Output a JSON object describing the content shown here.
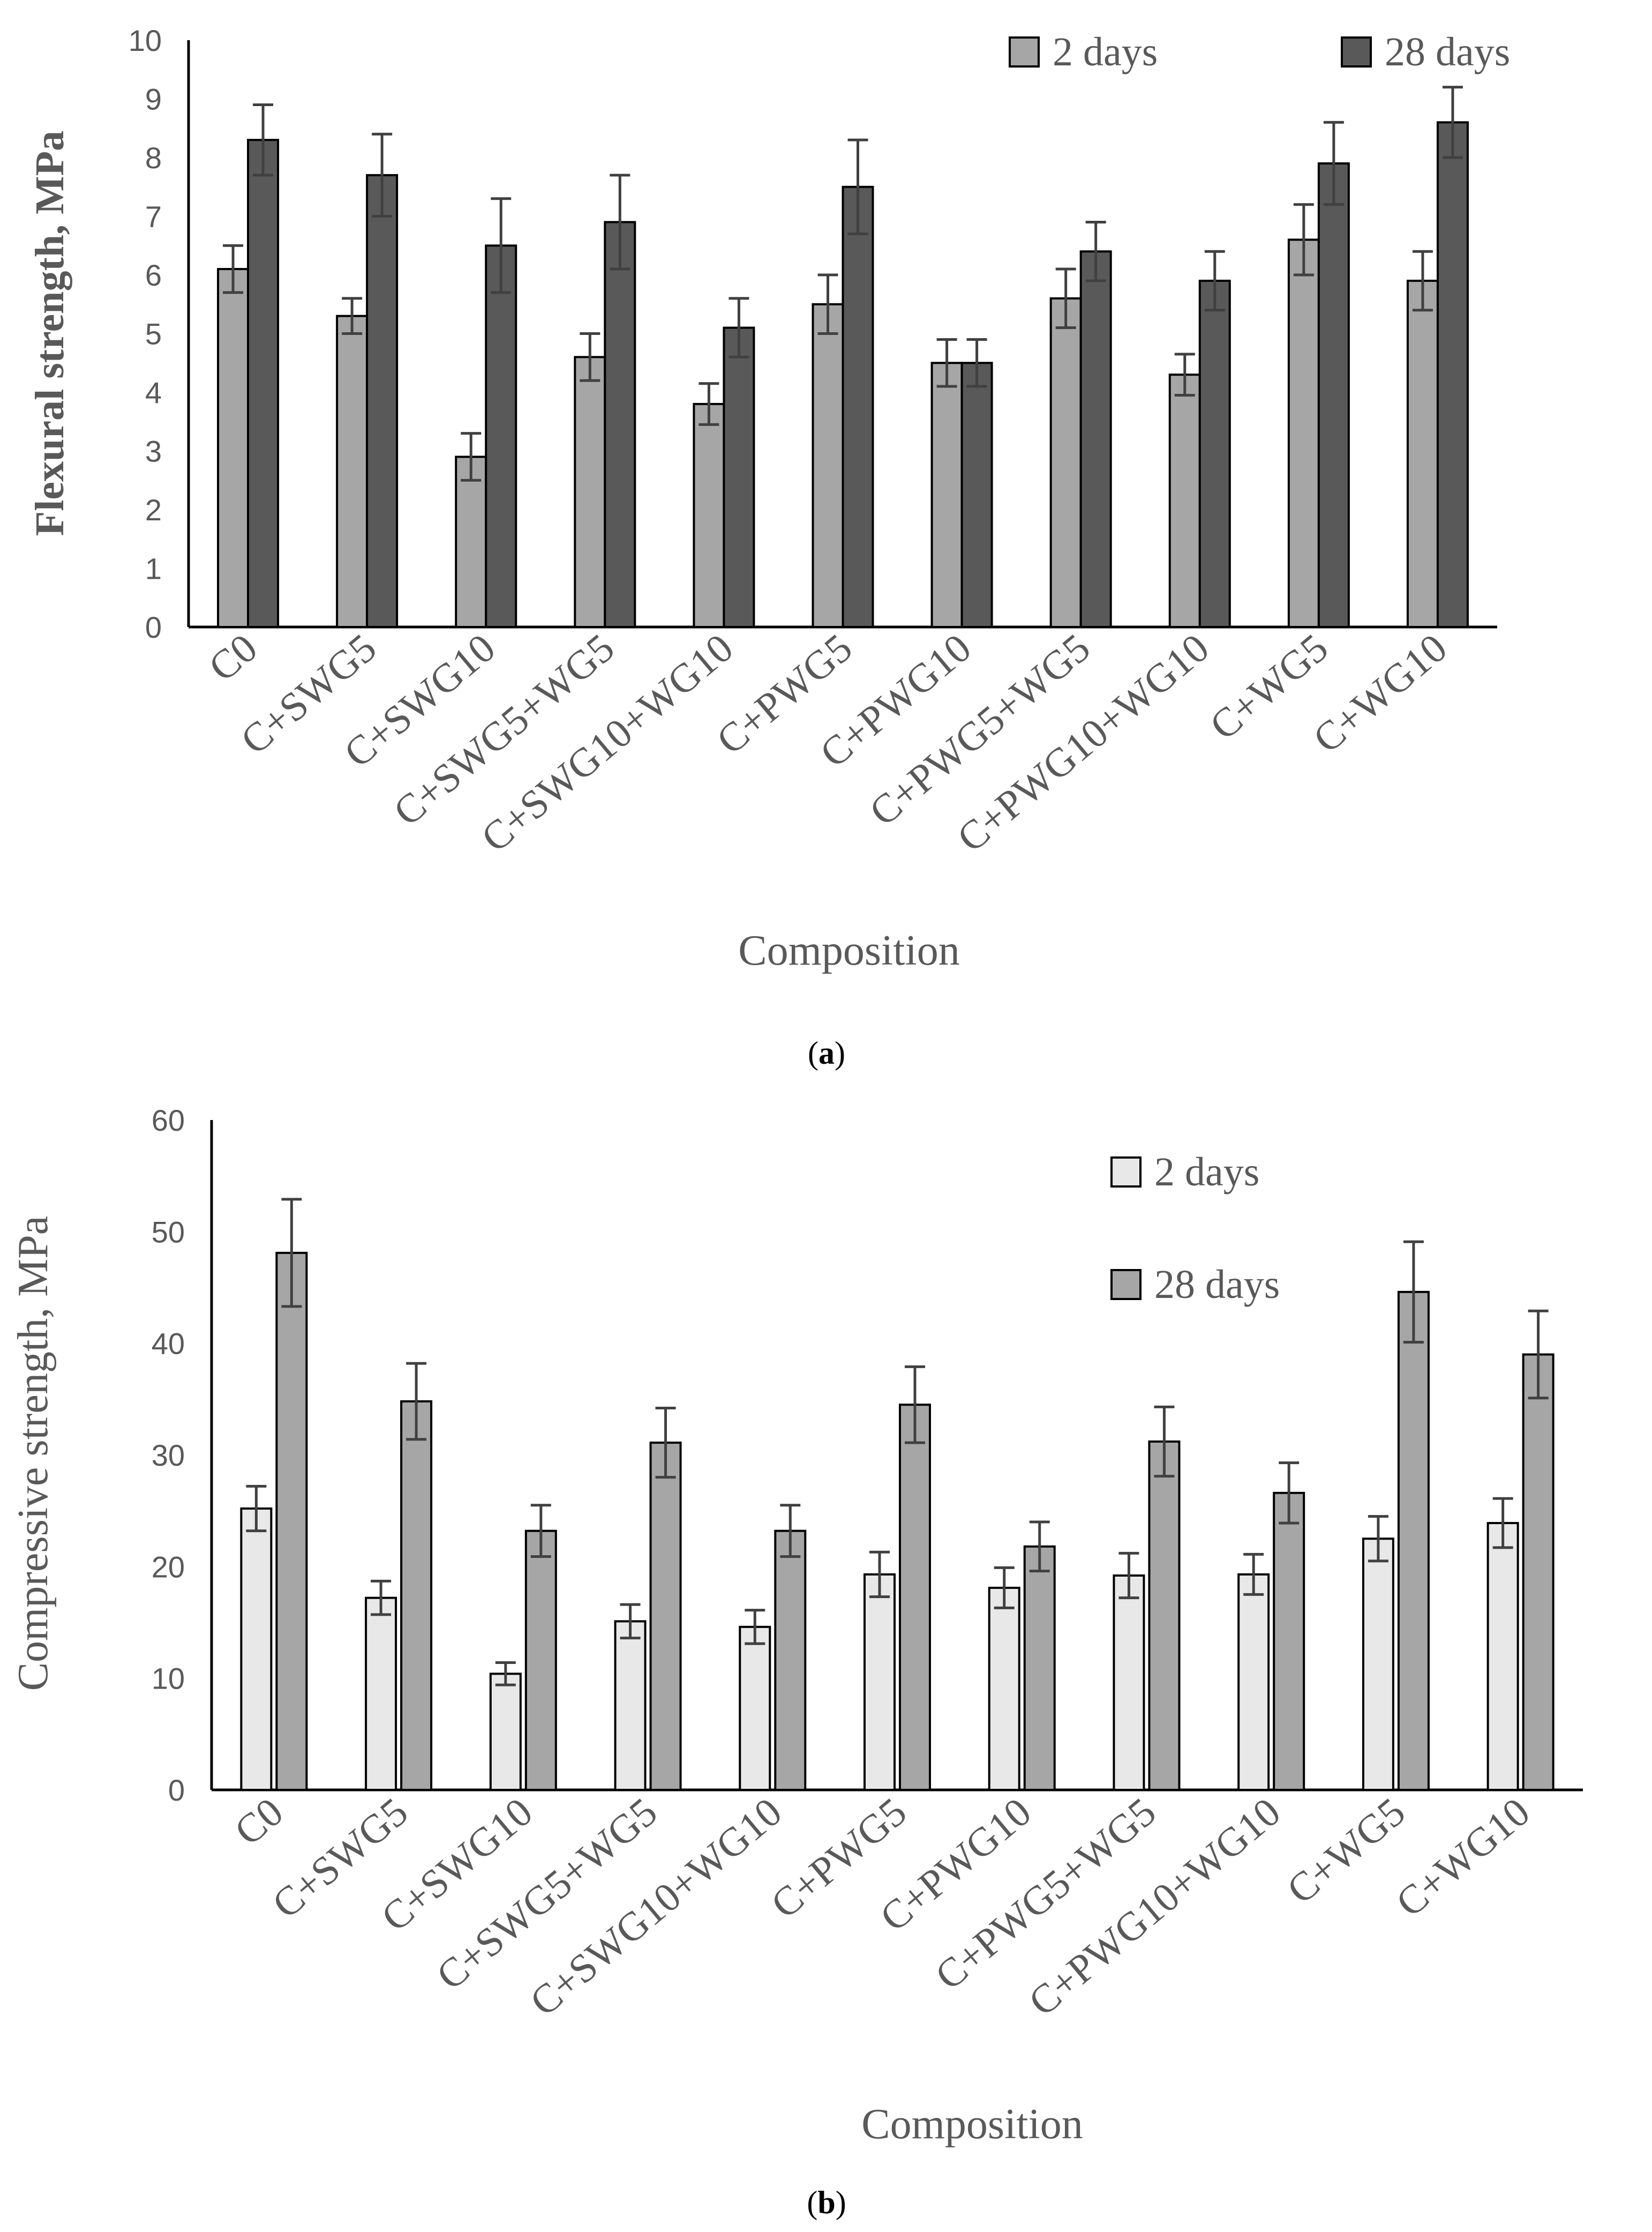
{
  "chart_data": [
    {
      "type": "bar",
      "panel": "a",
      "caption_open": "(",
      "caption_letter": "a",
      "caption_close": ")",
      "title": "",
      "xlabel": "Composition",
      "ylabel": "Flexural strength, MPa",
      "ylim": [
        0,
        10
      ],
      "yticks": [
        0,
        1,
        2,
        3,
        4,
        5,
        6,
        7,
        8,
        9,
        10
      ],
      "grid": false,
      "legend_position": "top-right",
      "categories": [
        "C0",
        "C+SWG5",
        "C+SWG10",
        "C+SWG5+WG5",
        "C+SWG10+WG10",
        "C+PWG5",
        "C+PWG10",
        "C+PWG5+WG5",
        "C+PWG10+WG10",
        "C+WG5",
        "C+WG10"
      ],
      "series": [
        {
          "name": "2 days",
          "color": "#a6a6a6",
          "values": [
            6.1,
            5.3,
            2.9,
            4.6,
            3.8,
            5.5,
            4.5,
            5.6,
            4.3,
            6.6,
            5.9
          ],
          "errors": [
            0.4,
            0.3,
            0.4,
            0.4,
            0.35,
            0.5,
            0.4,
            0.5,
            0.35,
            0.6,
            0.5
          ]
        },
        {
          "name": "28 days",
          "color": "#595959",
          "values": [
            8.3,
            7.7,
            6.5,
            6.9,
            5.1,
            7.5,
            4.5,
            6.4,
            5.9,
            7.9,
            8.6
          ],
          "errors": [
            0.6,
            0.7,
            0.8,
            0.8,
            0.5,
            0.8,
            0.4,
            0.5,
            0.5,
            0.7,
            0.6
          ]
        }
      ]
    },
    {
      "type": "bar",
      "panel": "b",
      "caption_open": "(",
      "caption_letter": "b",
      "caption_close": ")",
      "title": "",
      "xlabel": "Composition",
      "ylabel": "Compressive strength, MPa",
      "ylim": [
        0,
        60
      ],
      "yticks": [
        0,
        10,
        20,
        30,
        40,
        50,
        60
      ],
      "grid": false,
      "legend_position": "top-right",
      "categories": [
        "C0",
        "C+SWG5",
        "C+SWG10",
        "C+SWG5+WG5",
        "C+SWG10+WG10",
        "C+PWG5",
        "C+PWG10",
        "C+PWG5+WG5",
        "C+PWG10+WG10",
        "C+WG5",
        "C+WG10"
      ],
      "series": [
        {
          "name": "2 days",
          "color": "#e8e8e8",
          "values": [
            25.2,
            17.2,
            10.4,
            15.1,
            14.6,
            19.3,
            18.1,
            19.2,
            19.3,
            22.5,
            23.9
          ],
          "errors": [
            2.0,
            1.5,
            1.0,
            1.5,
            1.5,
            2.0,
            1.8,
            2.0,
            1.8,
            2.0,
            2.2
          ]
        },
        {
          "name": "28 days",
          "color": "#a6a6a6",
          "values": [
            48.1,
            34.8,
            23.2,
            31.1,
            23.2,
            34.5,
            21.8,
            31.2,
            26.6,
            44.6,
            39.0
          ],
          "errors": [
            4.8,
            3.4,
            2.3,
            3.1,
            2.3,
            3.4,
            2.2,
            3.1,
            2.7,
            4.5,
            3.9
          ]
        }
      ]
    }
  ]
}
